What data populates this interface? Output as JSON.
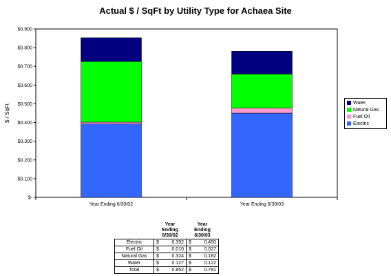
{
  "chart_data": {
    "type": "bar",
    "stacked": true,
    "title": "Actual $  / SqFt by Utility Type for Achaea Site",
    "ylabel": "$ / SqFt",
    "xlabel": "",
    "categories": [
      "Year Ending 6/30/02",
      "Year Ending 6/30/03"
    ],
    "ylim": [
      0,
      0.9
    ],
    "yticks": [
      0,
      0.1,
      0.2,
      0.3,
      0.4,
      0.5,
      0.6,
      0.7,
      0.8,
      0.9
    ],
    "ytick_labels": [
      "$-",
      "$0.100",
      "$0.200",
      "$0.300",
      "$0.400",
      "$0.500",
      "$0.600",
      "$0.700",
      "$0.800",
      "$0.900"
    ],
    "grid": false,
    "legend_position": "right",
    "series": [
      {
        "name": "Electric",
        "color": "#3366ff",
        "values": [
          0.392,
          0.45
        ]
      },
      {
        "name": "Fuel Oil",
        "color": "#ff99cc",
        "values": [
          0.01,
          0.027
        ]
      },
      {
        "name": "Natural Gas",
        "color": "#00ff00",
        "values": [
          0.324,
          0.182
        ]
      },
      {
        "name": "Water",
        "color": "#000080",
        "values": [
          0.127,
          0.122
        ]
      }
    ]
  },
  "table": {
    "headers": [
      "Year Ending 6/30/02",
      "Year Ending 6/30/03"
    ],
    "rows": [
      {
        "label": "Electric",
        "cur1": "$",
        "v1": "0.392",
        "cur2": "$",
        "v2": "0.450"
      },
      {
        "label": "Fuel Oil",
        "cur1": "$",
        "v1": "0.010",
        "cur2": "$",
        "v2": "0.027"
      },
      {
        "label": "Natural Gas",
        "cur1": "$",
        "v1": "0.324",
        "cur2": "$",
        "v2": "0.182"
      },
      {
        "label": "Water",
        "cur1": "$",
        "v1": "0.127",
        "cur2": "$",
        "v2": "0.122"
      },
      {
        "label": "Total",
        "cur1": "$",
        "v1": "0.852",
        "cur2": "$",
        "v2": "0.781"
      }
    ]
  }
}
